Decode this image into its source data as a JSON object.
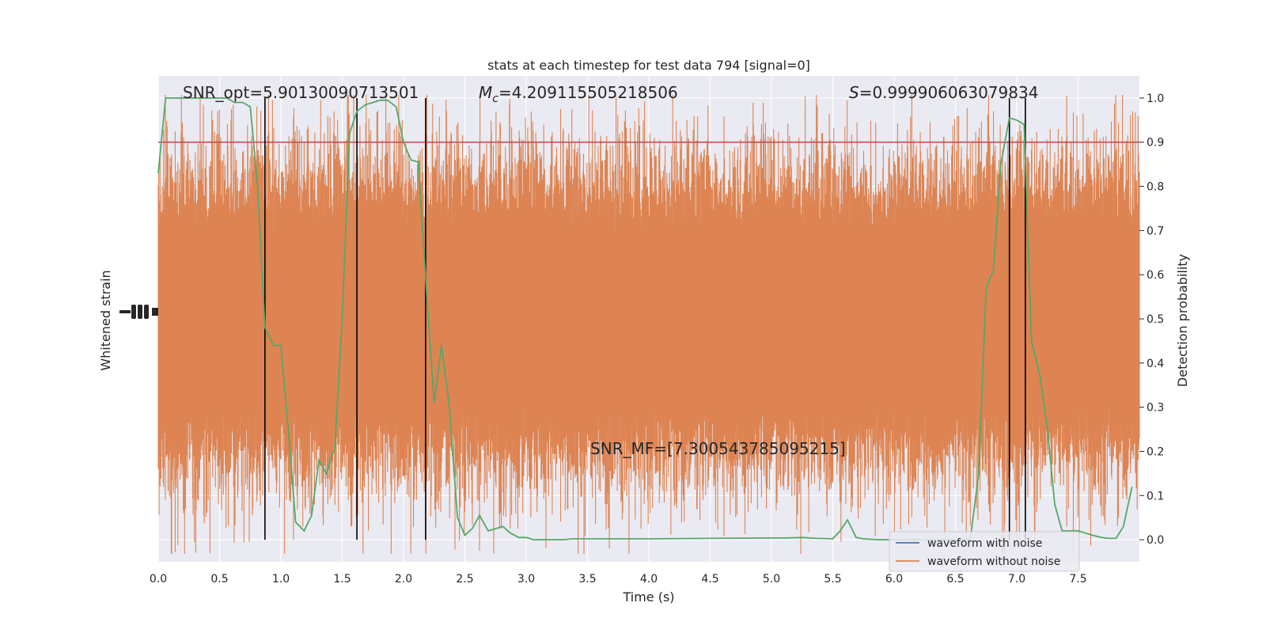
{
  "chart_data": {
    "type": "line",
    "title": "stats at each timestep for test data 794 [signal=0]",
    "xlabel": "Time (s)",
    "ylabel_left": "Whitened strain",
    "ylabel_right": "Detection probability",
    "xlim": [
      0,
      8
    ],
    "ylim_right": [
      -0.05,
      1.05
    ],
    "x_ticks": [
      "0.0",
      "0.5",
      "1.0",
      "1.5",
      "2.0",
      "2.5",
      "3.0",
      "3.5",
      "4.0",
      "4.5",
      "5.0",
      "5.5",
      "6.0",
      "6.5",
      "7.0",
      "7.5"
    ],
    "y_ticks_right": [
      "0.0",
      "0.1",
      "0.2",
      "0.3",
      "0.4",
      "0.5",
      "0.6",
      "0.7",
      "0.8",
      "0.9",
      "1.0"
    ],
    "grid": true,
    "threshold": 0.9,
    "vertical_lines": [
      0.87,
      1.62,
      2.18,
      6.94,
      7.07
    ],
    "annotations": {
      "snr_opt": "SNR_opt=5.90130090713501",
      "mc_symbol": "M",
      "mc_sub": "c",
      "mc_value": "=4.209115505218506",
      "s_symbol": "S",
      "s_value": "=0.999906063079834",
      "snr_mf": "SNR_MF=[7.300543785095215]"
    },
    "series": [
      {
        "name": "waveform with noise",
        "color": "#4c72b0"
      },
      {
        "name": "waveform without noise",
        "color": "#dd8452"
      }
    ],
    "probability_color": "#55a868",
    "threshold_color": "#c44e52",
    "probability": {
      "x": [
        0.0,
        0.06,
        0.12,
        0.19,
        0.25,
        0.31,
        0.37,
        0.44,
        0.5,
        0.56,
        0.62,
        0.69,
        0.75,
        0.81,
        0.87,
        0.94,
        1.0,
        1.06,
        1.12,
        1.19,
        1.25,
        1.31,
        1.37,
        1.44,
        1.5,
        1.56,
        1.62,
        1.69,
        1.75,
        1.81,
        1.87,
        1.94,
        2.0,
        2.06,
        2.12,
        2.19,
        2.25,
        2.31,
        2.37,
        2.44,
        2.5,
        2.56,
        2.62,
        2.69,
        2.75,
        2.81,
        2.87,
        2.94,
        3.0,
        3.06,
        3.12,
        3.19,
        3.25,
        3.31,
        3.37,
        3.5,
        3.75,
        4.0,
        4.5,
        5.0,
        5.12,
        5.25,
        5.37,
        5.5,
        5.56,
        5.62,
        5.69,
        5.75,
        5.87,
        6.0,
        6.25,
        6.5,
        6.62,
        6.69,
        6.75,
        6.81,
        6.87,
        6.94,
        7.0,
        7.06,
        7.12,
        7.19,
        7.25,
        7.31,
        7.37,
        7.5,
        7.56,
        7.62,
        7.69,
        7.75,
        7.81,
        7.87,
        7.94
      ],
      "y": [
        0.83,
        1.0,
        1.0,
        1.0,
        1.0,
        1.0,
        1.0,
        1.0,
        1.0,
        1.0,
        0.99,
        0.99,
        0.98,
        0.8,
        0.48,
        0.44,
        0.44,
        0.25,
        0.04,
        0.02,
        0.055,
        0.18,
        0.15,
        0.21,
        0.5,
        0.92,
        0.97,
        0.985,
        0.99,
        0.995,
        0.995,
        0.98,
        0.9,
        0.86,
        0.855,
        0.55,
        0.31,
        0.44,
        0.31,
        0.05,
        0.01,
        0.025,
        0.055,
        0.02,
        0.025,
        0.03,
        0.015,
        0.005,
        0.005,
        0.0,
        0.0,
        0.0,
        0.0,
        0.0,
        0.002,
        0.002,
        0.002,
        0.002,
        0.003,
        0.004,
        0.004,
        0.005,
        0.003,
        0.002,
        0.02,
        0.045,
        0.005,
        0.002,
        0.0,
        0.0,
        0.0,
        0.0,
        0.0,
        0.15,
        0.57,
        0.61,
        0.85,
        0.955,
        0.95,
        0.94,
        0.45,
        0.37,
        0.25,
        0.08,
        0.02,
        0.02,
        0.015,
        0.01,
        0.005,
        0.003,
        0.003,
        0.03,
        0.12
      ]
    },
    "legend_position": "lower-right"
  }
}
